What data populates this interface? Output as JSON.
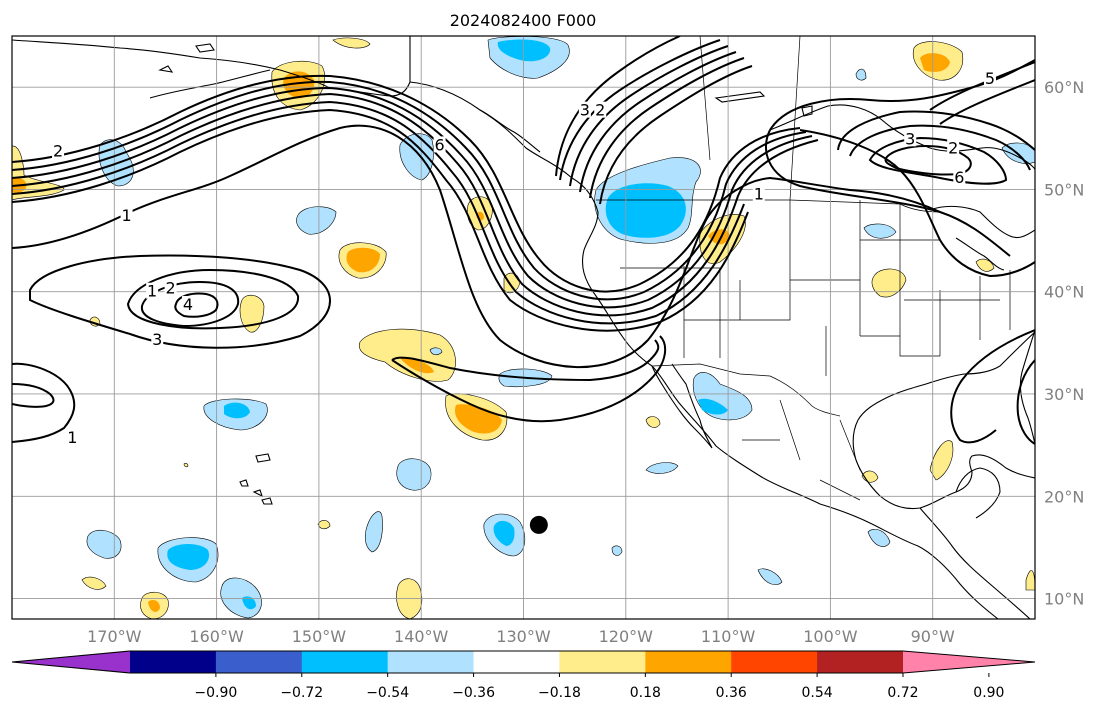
{
  "title": "2024082400 F000",
  "map": {
    "lon_range": [
      -180,
      -80
    ],
    "lat_range": [
      8,
      65
    ],
    "grid_lons": [
      -170,
      -160,
      -150,
      -140,
      -130,
      -120,
      -110,
      -100,
      -90
    ],
    "grid_lats": [
      10,
      20,
      30,
      40,
      50,
      60
    ],
    "lat_labels": [
      "10°N",
      "20°N",
      "30°N",
      "40°N",
      "50°N",
      "60°N"
    ],
    "lon_labels": [
      "170°W",
      "160°W",
      "150°W",
      "140°W",
      "130°W",
      "120°W",
      "110°W",
      "100°W",
      "90°W"
    ]
  },
  "marker": {
    "name": "storm-center",
    "lon": -128.5,
    "lat": 17.2
  },
  "contour_labels": [
    {
      "text": "1",
      "lon": -168.8,
      "lat": 47.4
    },
    {
      "text": "2",
      "lon": -164.5,
      "lat": 40.3
    },
    {
      "text": "1",
      "lon": -166.3,
      "lat": 40.0
    },
    {
      "text": "4",
      "lon": -162.8,
      "lat": 38.7
    },
    {
      "text": "3",
      "lon": -165.8,
      "lat": 35.3
    },
    {
      "text": "1",
      "lon": -174.1,
      "lat": 25.7
    },
    {
      "text": "6",
      "lon": -138.2,
      "lat": 54.3
    },
    {
      "text": "2",
      "lon": -175.5,
      "lat": 53.7
    },
    {
      "text": "2",
      "lon": -122.5,
      "lat": 57.7
    },
    {
      "text": "3",
      "lon": -124.0,
      "lat": 57.7
    },
    {
      "text": "3",
      "lon": -92.2,
      "lat": 54.9
    },
    {
      "text": "2",
      "lon": -88.0,
      "lat": 54.0
    },
    {
      "text": "6",
      "lon": -87.4,
      "lat": 51.1
    },
    {
      "text": "1",
      "lon": -107.0,
      "lat": 49.5
    },
    {
      "text": "5",
      "lon": -84.4,
      "lat": 60.8
    }
  ],
  "colorbar": {
    "colors": [
      "#9932cc",
      "#00008b",
      "#3a5fcd",
      "#00bfff",
      "#b0e2ff",
      "#ffffff",
      "#ffec8b",
      "#ffa500",
      "#ff4500",
      "#b22222",
      "#ff82ab"
    ],
    "tick_labels": [
      "−0.90",
      "−0.72",
      "−0.54",
      "−0.36",
      "−0.18",
      "0.18",
      "0.36",
      "0.54",
      "0.72",
      "0.90"
    ]
  }
}
